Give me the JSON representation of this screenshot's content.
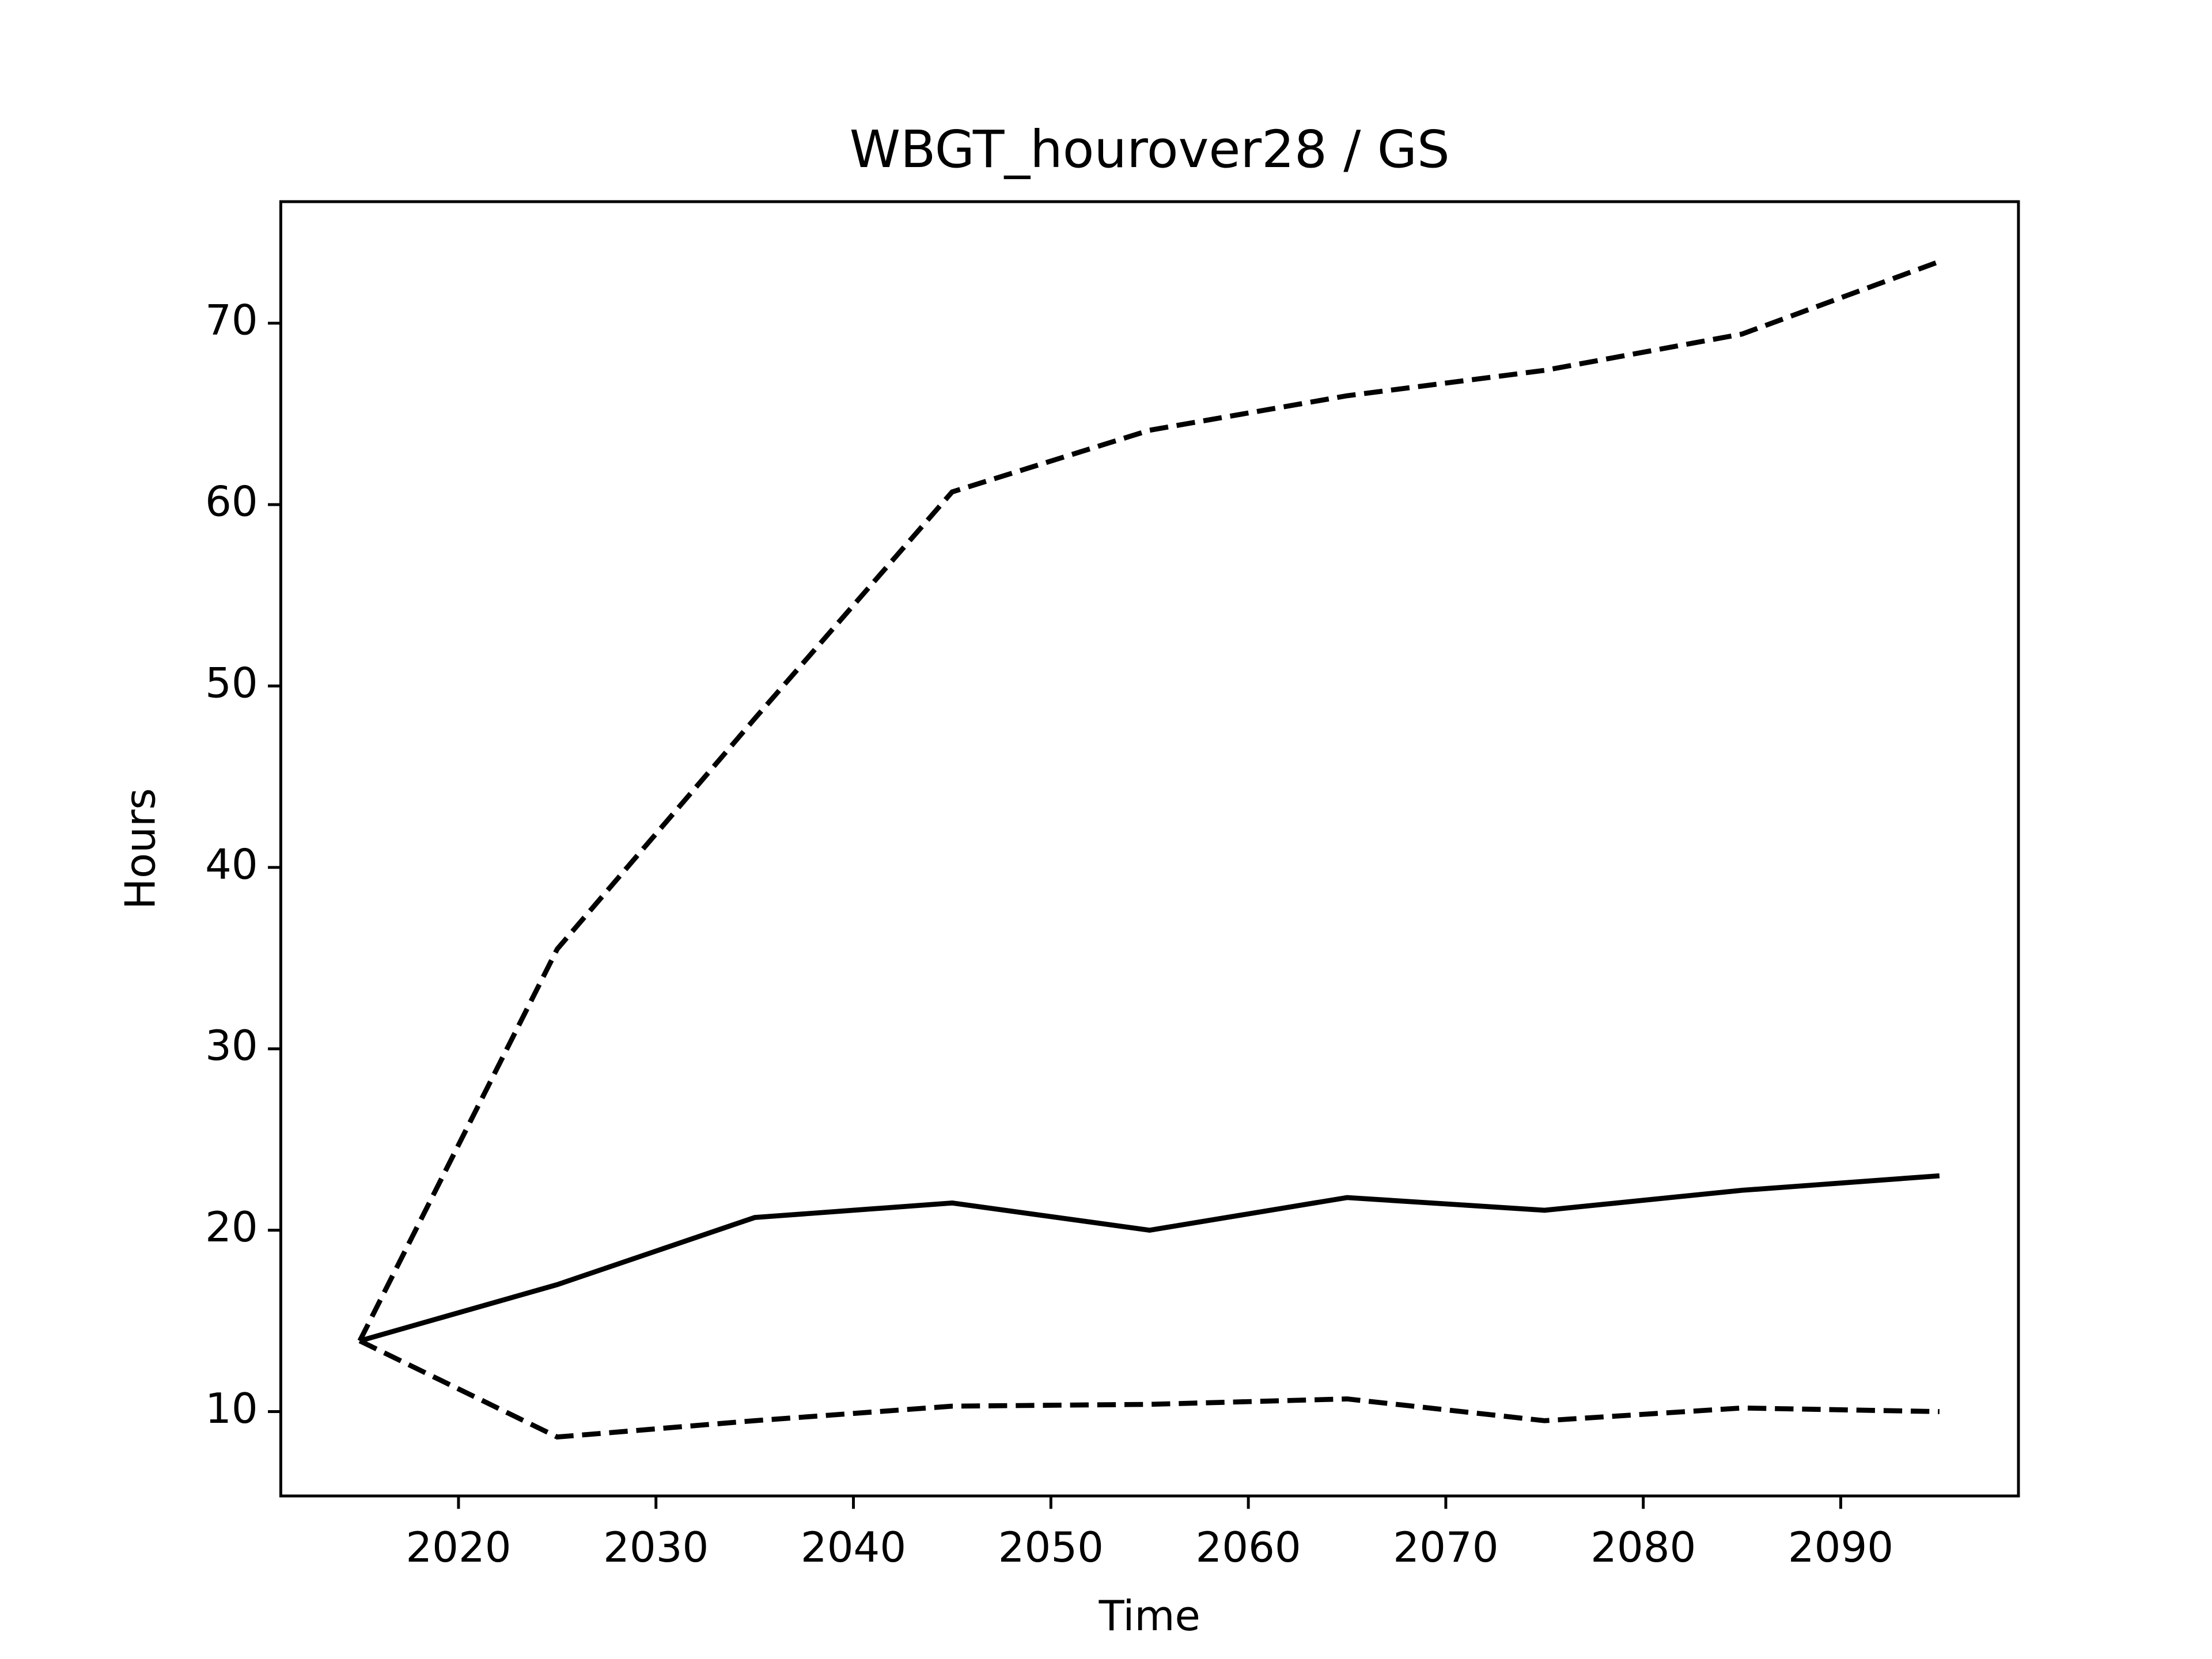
{
  "chart_data": {
    "type": "line",
    "title": "WBGT_hourover28 / GS",
    "xlabel": "Time",
    "ylabel": "Hours",
    "x": [
      2015,
      2025,
      2035,
      2045,
      2055,
      2065,
      2075,
      2085,
      2095
    ],
    "series": [
      {
        "color": "#000000",
        "linestyle": "dashed",
        "values": [
          13.9,
          35.5,
          48.2,
          60.7,
          64.1,
          66.0,
          67.4,
          69.4,
          73.4
        ]
      },
      {
        "color": "#000000",
        "linestyle": "solid",
        "values": [
          13.9,
          17.0,
          20.7,
          21.5,
          20.0,
          21.8,
          21.1,
          22.2,
          23.0
        ]
      },
      {
        "color": "#000000",
        "linestyle": "dashed",
        "values": [
          13.9,
          8.6,
          9.5,
          10.3,
          10.4,
          10.7,
          9.5,
          10.2,
          10.0
        ]
      }
    ],
    "xlim": [
      2011,
      2099
    ],
    "xticks": [
      2020,
      2030,
      2040,
      2050,
      2060,
      2070,
      2080,
      2090
    ],
    "ylim": [
      5.35,
      76.7
    ],
    "yticks": [
      10,
      20,
      30,
      40,
      50,
      60,
      70
    ],
    "grid": false
  }
}
